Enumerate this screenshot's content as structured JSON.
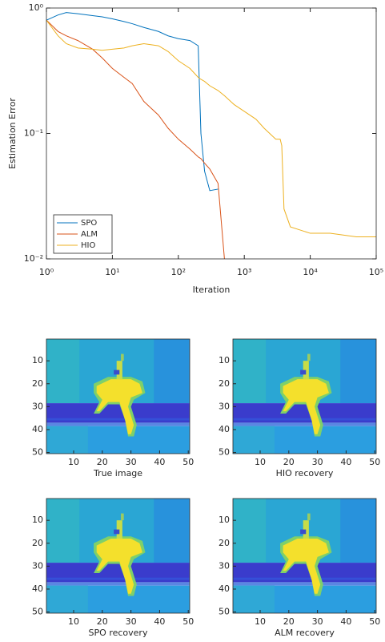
{
  "chart_data": [
    {
      "type": "line",
      "xlabel": "Iteration",
      "ylabel": "Estimation Error",
      "xscale": "log",
      "yscale": "log",
      "xlim": [
        1,
        100000
      ],
      "ylim": [
        0.01,
        1
      ],
      "xticks": [
        {
          "value": 1,
          "label": "10⁰"
        },
        {
          "value": 10,
          "label": "10¹"
        },
        {
          "value": 100,
          "label": "10²"
        },
        {
          "value": 1000,
          "label": "10³"
        },
        {
          "value": 10000,
          "label": "10⁴"
        },
        {
          "value": 100000,
          "label": "10⁵"
        }
      ],
      "yticks": [
        {
          "value": 0.01,
          "label": "10⁻²"
        },
        {
          "value": 0.1,
          "label": "10⁻¹"
        },
        {
          "value": 1,
          "label": "10⁰"
        }
      ],
      "legend": "lower left",
      "x": [
        1,
        1.5,
        2,
        3,
        5,
        7,
        10,
        15,
        20,
        30,
        50,
        70,
        100,
        150,
        200,
        220,
        250,
        300,
        400,
        500,
        700,
        1000,
        1500,
        2000,
        3000,
        3500,
        3700,
        4000,
        5000,
        7000,
        10000,
        20000,
        50000,
        100000
      ],
      "series": [
        {
          "name": "SPO",
          "color": "#0072bd",
          "values": [
            0.8,
            0.88,
            0.92,
            0.9,
            0.87,
            0.85,
            0.82,
            0.78,
            0.75,
            0.7,
            0.65,
            0.6,
            0.57,
            0.55,
            0.5,
            0.1,
            0.05,
            0.035,
            0.036,
            null,
            null,
            null,
            null,
            null,
            null,
            null,
            null,
            null,
            null,
            null,
            null,
            null,
            null,
            null
          ]
        },
        {
          "name": "ALM",
          "color": "#d95319",
          "values": [
            0.8,
            0.65,
            0.6,
            0.55,
            0.47,
            0.4,
            0.33,
            0.28,
            0.25,
            0.18,
            0.14,
            0.11,
            0.09,
            0.075,
            0.065,
            0.063,
            0.058,
            0.052,
            0.04,
            0.01,
            null,
            null,
            null,
            null,
            null,
            null,
            null,
            null,
            null,
            null,
            null,
            null,
            null,
            null
          ]
        },
        {
          "name": "HIO",
          "color": "#edb120",
          "values": [
            0.8,
            0.6,
            0.52,
            0.48,
            0.47,
            0.46,
            0.47,
            0.48,
            0.5,
            0.52,
            0.5,
            0.45,
            0.38,
            0.33,
            0.28,
            0.27,
            0.26,
            0.24,
            0.22,
            0.2,
            0.17,
            0.15,
            0.13,
            0.11,
            0.09,
            0.09,
            0.08,
            0.025,
            0.018,
            0.017,
            0.016,
            0.016,
            0.015,
            0.015
          ]
        }
      ]
    },
    {
      "type": "image",
      "title": "True image",
      "xlim": [
        0.5,
        50.5
      ],
      "ylim": [
        50.5,
        0.5
      ],
      "xticks": [
        10,
        20,
        30,
        40,
        50
      ],
      "yticks": [
        10,
        20,
        30,
        40,
        50
      ]
    },
    {
      "type": "image",
      "title": "HIO recovery",
      "xlim": [
        0.5,
        50.5
      ],
      "ylim": [
        50.5,
        0.5
      ],
      "xticks": [
        10,
        20,
        30,
        40,
        50
      ],
      "yticks": [
        10,
        20,
        30,
        40,
        50
      ]
    },
    {
      "type": "image",
      "title": "SPO recovery",
      "xlim": [
        0.5,
        50.5
      ],
      "ylim": [
        50.5,
        0.5
      ],
      "xticks": [
        10,
        20,
        30,
        40,
        50
      ],
      "yticks": [
        10,
        20,
        30,
        40,
        50
      ]
    },
    {
      "type": "image",
      "title": "ALM recovery",
      "xlim": [
        0.5,
        50.5
      ],
      "ylim": [
        50.5,
        0.5
      ],
      "xticks": [
        10,
        20,
        30,
        40,
        50
      ],
      "yticks": [
        10,
        20,
        30,
        40,
        50
      ]
    }
  ]
}
